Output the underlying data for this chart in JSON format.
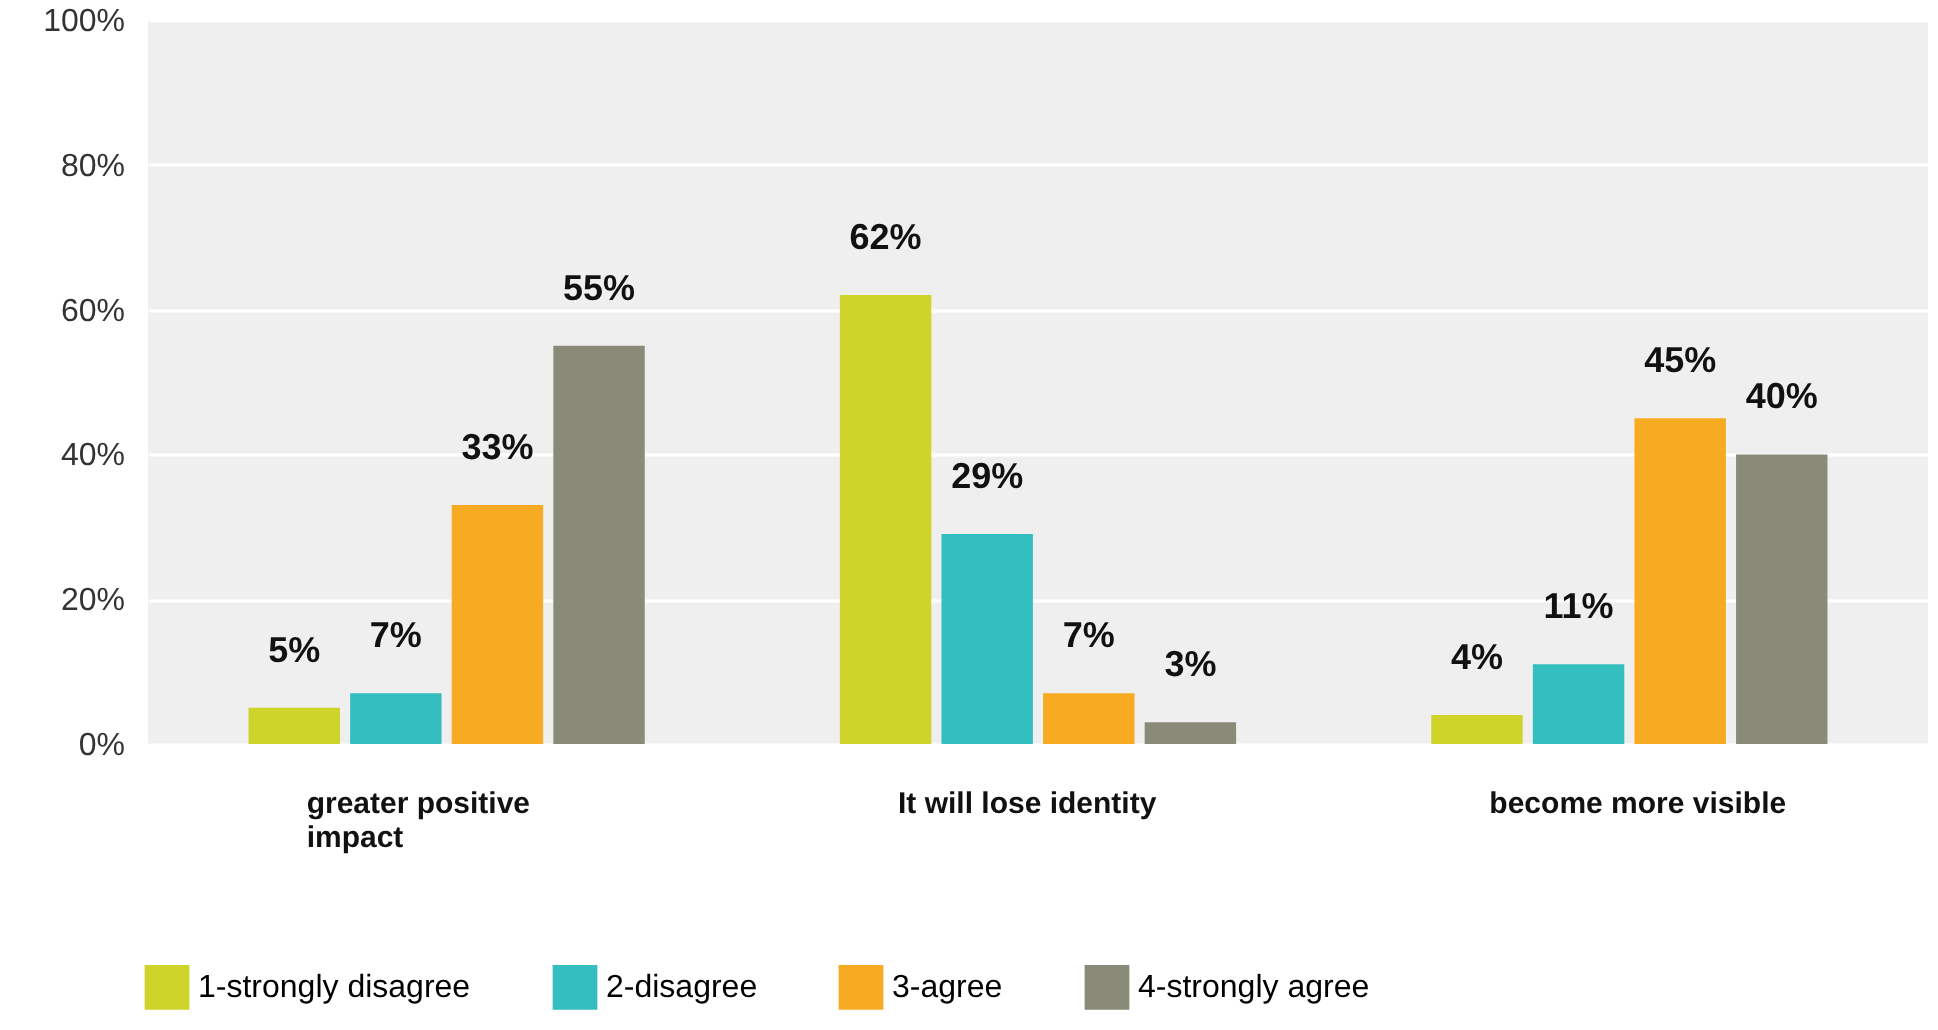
{
  "chart_data": {
    "type": "bar",
    "categories": [
      "greater positive impact",
      "It will lose identity",
      "become more visible"
    ],
    "series": [
      {
        "name": "1-strongly disagree",
        "color": "#cfd42a",
        "values": [
          5,
          62,
          4
        ],
        "value_labels": [
          "5%",
          "62%",
          "4%"
        ]
      },
      {
        "name": "2-disagree",
        "color": "#35bec0",
        "values": [
          7,
          29,
          11
        ],
        "value_labels": [
          "7%",
          "29%",
          "11%"
        ]
      },
      {
        "name": "3-agree",
        "color": "#f6ab22",
        "values": [
          33,
          7,
          45
        ],
        "value_labels": [
          "33%",
          "7%",
          "45%"
        ]
      },
      {
        "name": "4-strongly agree",
        "color": "#8a8a78",
        "values": [
          55,
          3,
          40
        ],
        "value_labels": [
          "55%",
          "3%",
          "40%"
        ]
      }
    ],
    "ylim": [
      0,
      100
    ],
    "yticks": [
      {
        "value": 0,
        "label": "0%"
      },
      {
        "value": 20,
        "label": "20%"
      },
      {
        "value": 40,
        "label": "40%"
      },
      {
        "value": 60,
        "label": "60%"
      },
      {
        "value": 80,
        "label": "80%"
      },
      {
        "value": 100,
        "label": "100%"
      }
    ],
    "grid": "y",
    "legend": "bottom left"
  }
}
